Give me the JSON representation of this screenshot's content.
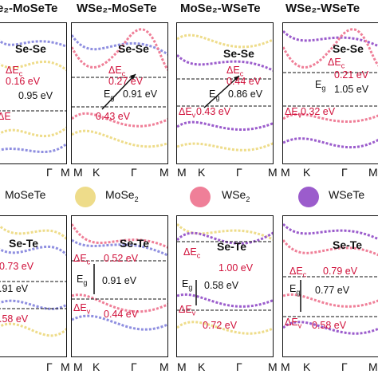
{
  "top_titles": [
    "e₂-MoSeTe",
    "WSe₂-MoSeTe",
    "MoSe₂-WSeTe",
    "WSe₂-WSeTe"
  ],
  "top_ticks": [
    [
      "Γ",
      "M"
    ],
    [
      "M",
      "K",
      "Γ",
      "M"
    ],
    [
      "M",
      "K",
      "Γ",
      "M"
    ],
    [
      "M",
      "K",
      "Γ",
      "M"
    ]
  ],
  "bottom_ticks": [
    [
      "Γ",
      "M"
    ],
    [
      "M",
      "K",
      "Γ",
      "M"
    ],
    [
      "M",
      "K",
      "Γ",
      "M"
    ],
    [
      "M",
      "K",
      "Γ",
      "M"
    ]
  ],
  "legend": {
    "items": [
      {
        "label": "MoSeTe",
        "color": "#eedc8a"
      },
      {
        "label": "MoSe₂",
        "color": "#eedc8a"
      },
      {
        "label": "WSe₂",
        "color": "#ef7f98"
      },
      {
        "label": "WSeTe",
        "color": "#9b5ccc"
      }
    ]
  },
  "colors": {
    "mo": "#eedc8a",
    "w": "#ef7f98",
    "wsete": "#9b5ccc",
    "mosete_blue": "#8f8fe0",
    "red": "#d0103a",
    "arrow": "#d4a017"
  },
  "panels_top": [
    {
      "label": "Se-Se",
      "dEc": "ΔE",
      "dEc_sub": "c",
      "dEc_val": "0.16 eV",
      "eg_val": "0.95 eV",
      "dEv_val": "ΔE"
    },
    {
      "label": "Se-Se",
      "dEc": "ΔE",
      "dEc_sub": "c",
      "dEc_val": "0.27 eV",
      "eg": "E",
      "eg_sub": "g",
      "eg_val": "0.91 eV",
      "dEv_val": "0.43 eV"
    },
    {
      "label": "Se-Se",
      "dEc": "ΔE",
      "dEc_sub": "c",
      "dEc_val": "0.44 eV",
      "eg": "E",
      "eg_sub": "g",
      "eg_val": "0.86 eV",
      "dEv": "ΔE",
      "dEv_sub": "v",
      "dEv_val": "0.43 eV"
    },
    {
      "label": "Se-Se",
      "dEc": "ΔE",
      "dEc_sub": "c",
      "dEc_val": "0.21 eV",
      "eg": "E",
      "eg_sub": "g",
      "eg_val": "1.05 eV",
      "dEv": "ΔE",
      "dEv_sub": "v",
      "dEv_val": "0.32 eV"
    }
  ],
  "panels_bottom": [
    {
      "label": "Se-Te",
      "dEc_val": "0.73 eV",
      "eg_val": ".91 eV",
      "dEv_val": ".58 eV"
    },
    {
      "label": "Se-Te",
      "dEc": "ΔE",
      "dEc_sub": "c",
      "dEc_val": "0.52 eV",
      "eg": "E",
      "eg_sub": "g",
      "eg_val": "0.91 eV",
      "dEv": "ΔE",
      "dEv_sub": "v",
      "dEv_val": "0.44 eV"
    },
    {
      "label": "Se-Te",
      "dEc": "ΔE",
      "dEc_sub": "c",
      "dEc_val": "1.00 eV",
      "eg": "E",
      "eg_sub": "g",
      "eg_val": "0.58 eV",
      "dEv": "ΔE",
      "dEv_sub": "v",
      "dEv_val": "0.72 eV"
    },
    {
      "label": "Se-Te",
      "dEc": "ΔE",
      "dEc_sub": "c",
      "dEc_val": "0.79 eV",
      "eg": "E",
      "eg_sub": "g",
      "eg_val": "0.77 eV",
      "dEv": "ΔE",
      "dEv_sub": "v",
      "dEv_val": "0.58 eV"
    }
  ]
}
